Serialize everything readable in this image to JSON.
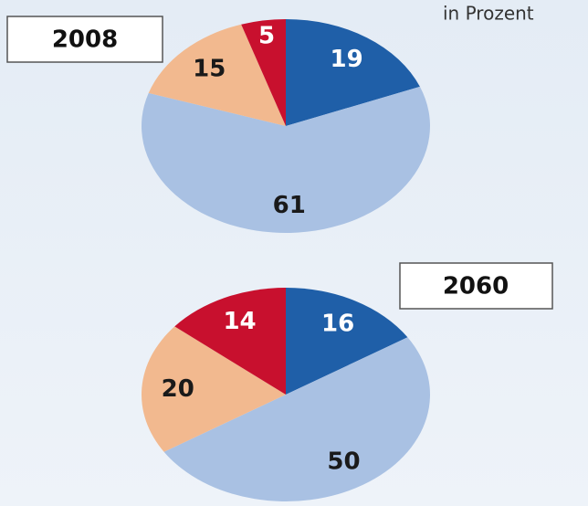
{
  "chart_data": [
    {
      "type": "pie",
      "title": "2008",
      "subtitle": "in Prozent",
      "values": [
        19,
        61,
        15,
        5
      ],
      "colors": [
        "#1f5fa8",
        "#a9c1e3",
        "#f2b98f",
        "#c8102e"
      ]
    },
    {
      "type": "pie",
      "title": "2060",
      "values": [
        16,
        50,
        20,
        14
      ],
      "colors": [
        "#1f5fa8",
        "#a9c1e3",
        "#f2b98f",
        "#c8102e"
      ]
    }
  ]
}
